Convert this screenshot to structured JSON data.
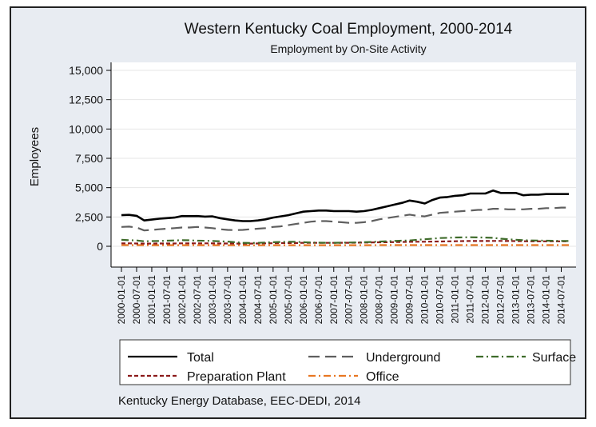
{
  "chart_data": {
    "type": "line",
    "title": "Western Kentucky Coal Employment, 2000-2014",
    "subtitle": "Employment by On-Site Activity",
    "ylabel": "Employees",
    "xlabel": "",
    "ylim": [
      0,
      15000
    ],
    "yticks": [
      0,
      2500,
      5000,
      7500,
      10000,
      12500,
      15000
    ],
    "ytick_labels": [
      "0",
      "2,500",
      "5,000",
      "7,500",
      "10,000",
      "12,500",
      "15,000"
    ],
    "grid": "horizontal",
    "legend_position": "bottom",
    "note": "Kentucky Energy Database, EEC-DEDI, 2014",
    "x": [
      "2000-01-01",
      "2000-04-01",
      "2000-07-01",
      "2000-10-01",
      "2001-01-01",
      "2001-04-01",
      "2001-07-01",
      "2001-10-01",
      "2002-01-01",
      "2002-04-01",
      "2002-07-01",
      "2002-10-01",
      "2003-01-01",
      "2003-04-01",
      "2003-07-01",
      "2003-10-01",
      "2004-01-01",
      "2004-04-01",
      "2004-07-01",
      "2004-10-01",
      "2005-01-01",
      "2005-04-01",
      "2005-07-01",
      "2005-10-01",
      "2006-01-01",
      "2006-04-01",
      "2006-07-01",
      "2006-10-01",
      "2007-01-01",
      "2007-04-01",
      "2007-07-01",
      "2007-10-01",
      "2008-01-01",
      "2008-04-01",
      "2008-07-01",
      "2008-10-01",
      "2009-01-01",
      "2009-04-01",
      "2009-07-01",
      "2009-10-01",
      "2010-01-01",
      "2010-04-01",
      "2010-07-01",
      "2010-10-01",
      "2011-01-01",
      "2011-04-01",
      "2011-07-01",
      "2011-10-01",
      "2012-01-01",
      "2012-04-01",
      "2012-07-01",
      "2012-10-01",
      "2013-01-01",
      "2013-04-01",
      "2013-07-01",
      "2013-10-01",
      "2014-01-01",
      "2014-04-01",
      "2014-07-01",
      "2014-10-01"
    ],
    "x_tick_labels": [
      "2000-01-01",
      "2000-07-01",
      "2001-01-01",
      "2001-07-01",
      "2002-01-01",
      "2002-07-01",
      "2003-01-01",
      "2003-07-01",
      "2004-01-01",
      "2004-07-01",
      "2005-01-01",
      "2005-07-01",
      "2006-01-01",
      "2006-07-01",
      "2007-01-01",
      "2007-07-01",
      "2008-01-01",
      "2008-07-01",
      "2009-01-01",
      "2009-07-01",
      "2010-01-01",
      "2010-07-01",
      "2011-01-01",
      "2011-07-01",
      "2012-01-01",
      "2012-07-01",
      "2013-01-01",
      "2013-07-01",
      "2014-01-01",
      "2014-07-01"
    ],
    "series": [
      {
        "name": "Total",
        "color": "#000000",
        "dash": "solid",
        "values": [
          2650,
          2680,
          2600,
          2200,
          2280,
          2350,
          2400,
          2450,
          2580,
          2570,
          2580,
          2530,
          2550,
          2400,
          2300,
          2200,
          2150,
          2150,
          2200,
          2300,
          2450,
          2550,
          2650,
          2800,
          2950,
          3000,
          3050,
          3050,
          3000,
          3000,
          3000,
          2950,
          3000,
          3100,
          3250,
          3400,
          3550,
          3700,
          3900,
          3800,
          3650,
          3950,
          4150,
          4200,
          4300,
          4350,
          4500,
          4500,
          4500,
          4750,
          4550,
          4550,
          4550,
          4350,
          4400,
          4400,
          4450,
          4450,
          4450,
          4450
        ]
      },
      {
        "name": "Underground",
        "color": "#5f5f5f",
        "dash": "long-dash",
        "values": [
          1650,
          1680,
          1600,
          1350,
          1400,
          1450,
          1500,
          1550,
          1600,
          1600,
          1650,
          1600,
          1550,
          1450,
          1400,
          1380,
          1400,
          1450,
          1500,
          1550,
          1650,
          1700,
          1800,
          1900,
          2000,
          2100,
          2150,
          2150,
          2100,
          2050,
          2000,
          2000,
          2050,
          2150,
          2300,
          2400,
          2500,
          2600,
          2700,
          2600,
          2550,
          2700,
          2850,
          2900,
          2950,
          3000,
          3050,
          3100,
          3100,
          3200,
          3200,
          3150,
          3150,
          3150,
          3200,
          3200,
          3250,
          3250,
          3300,
          3300
        ]
      },
      {
        "name": "Surface",
        "color": "#3e6b2a",
        "dash": "dash-dot",
        "values": [
          550,
          520,
          500,
          420,
          440,
          450,
          480,
          500,
          520,
          510,
          480,
          470,
          450,
          420,
          400,
          350,
          300,
          280,
          290,
          320,
          350,
          370,
          380,
          380,
          350,
          320,
          310,
          300,
          300,
          310,
          320,
          330,
          350,
          370,
          400,
          430,
          450,
          480,
          500,
          550,
          600,
          650,
          700,
          720,
          750,
          760,
          770,
          760,
          740,
          720,
          650,
          600,
          550,
          520,
          500,
          490,
          480,
          470,
          460,
          450
        ]
      },
      {
        "name": "Preparation Plant",
        "color": "#8b1a1a",
        "dash": "short-dash",
        "values": [
          250,
          250,
          240,
          230,
          230,
          240,
          240,
          240,
          250,
          250,
          250,
          250,
          250,
          240,
          240,
          230,
          230,
          230,
          240,
          250,
          260,
          270,
          280,
          280,
          290,
          290,
          290,
          290,
          290,
          300,
          300,
          310,
          320,
          330,
          340,
          350,
          360,
          370,
          380,
          390,
          390,
          400,
          410,
          420,
          430,
          440,
          450,
          450,
          450,
          460,
          460,
          450,
          440,
          430,
          420,
          420,
          420,
          420,
          420,
          420
        ]
      },
      {
        "name": "Office",
        "color": "#e87722",
        "dash": "dash-dot",
        "values": [
          100,
          100,
          100,
          95,
          95,
          95,
          95,
          95,
          95,
          95,
          95,
          95,
          95,
          90,
          90,
          90,
          90,
          90,
          90,
          90,
          90,
          95,
          95,
          95,
          95,
          95,
          95,
          95,
          95,
          95,
          95,
          95,
          95,
          95,
          100,
          100,
          100,
          100,
          100,
          100,
          100,
          100,
          100,
          100,
          105,
          105,
          105,
          105,
          105,
          105,
          105,
          105,
          100,
          100,
          100,
          100,
          100,
          100,
          100,
          100
        ]
      }
    ]
  }
}
